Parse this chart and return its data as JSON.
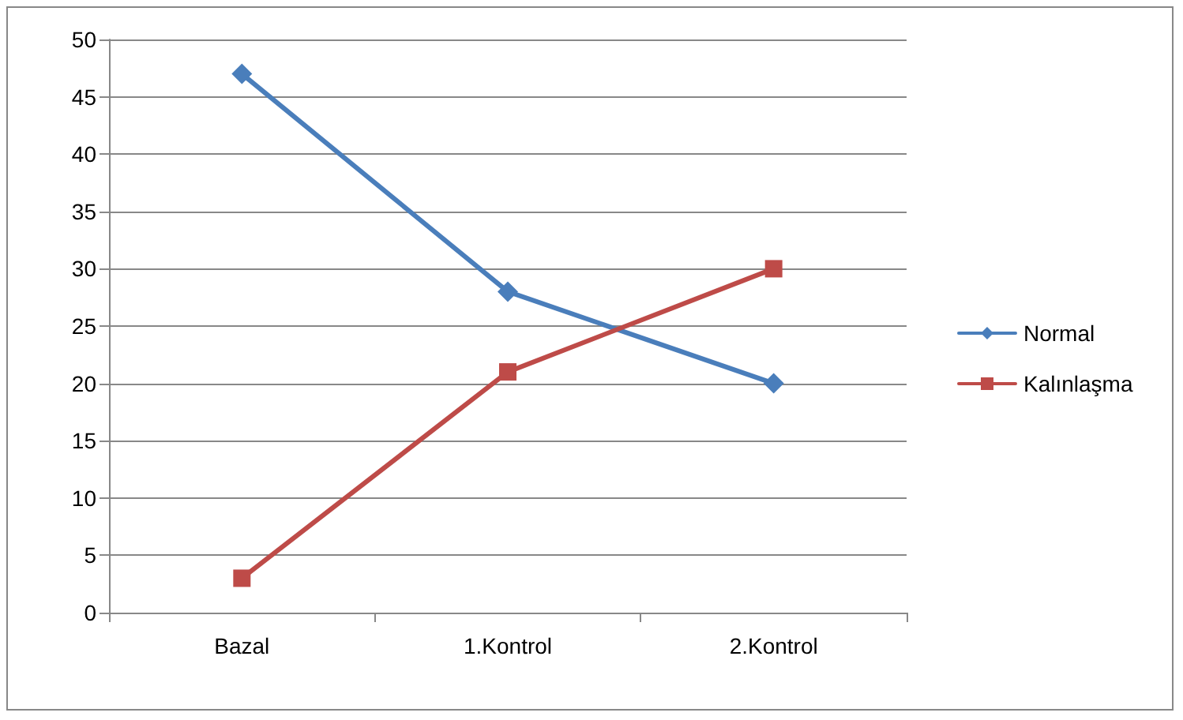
{
  "chart_data": {
    "type": "line",
    "categories": [
      "Bazal",
      "1.Kontrol",
      "2.Kontrol"
    ],
    "series": [
      {
        "name": "Normal",
        "color": "#4a7ebb",
        "marker": "diamond",
        "values": [
          47,
          28,
          20
        ]
      },
      {
        "name": "Kalınlaşma",
        "color": "#be4b48",
        "marker": "square",
        "values": [
          3,
          21,
          30
        ]
      }
    ],
    "ylim": [
      0,
      50
    ],
    "yticks": [
      0,
      5,
      10,
      15,
      20,
      25,
      30,
      35,
      40,
      45,
      50
    ],
    "grid": "y",
    "legend": "right"
  }
}
